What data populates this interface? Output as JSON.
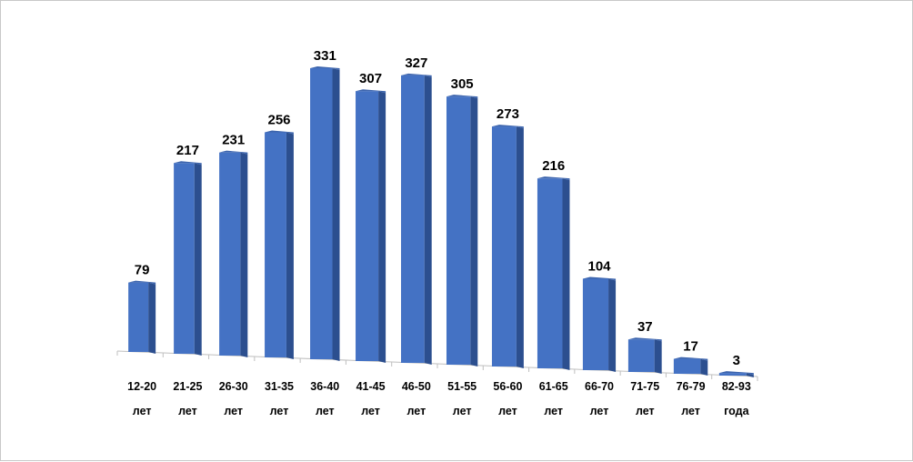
{
  "chart_data": {
    "type": "bar",
    "categories": [
      [
        "12-20",
        "лет"
      ],
      [
        "21-25",
        "лет"
      ],
      [
        "26-30",
        "лет"
      ],
      [
        "31-35",
        "лет"
      ],
      [
        "36-40",
        "лет"
      ],
      [
        "41-45",
        "лет"
      ],
      [
        "46-50",
        "лет"
      ],
      [
        "51-55",
        "лет"
      ],
      [
        "56-60",
        "лет"
      ],
      [
        "61-65",
        "лет"
      ],
      [
        "66-70",
        "лет"
      ],
      [
        "71-75",
        "лет"
      ],
      [
        "76-79",
        "лет"
      ],
      [
        "82-93",
        "года"
      ]
    ],
    "values": [
      79,
      217,
      231,
      256,
      331,
      307,
      327,
      305,
      273,
      216,
      104,
      37,
      17,
      3
    ],
    "title": "",
    "xlabel": "",
    "ylabel": "",
    "ylim": [
      0,
      331
    ],
    "grid": false,
    "legend": "none",
    "colors": {
      "bar_front": "#4472c4",
      "bar_side": "#2c4f8f",
      "bar_top": "#3c64ad",
      "axis": "#bfbfbf"
    }
  }
}
